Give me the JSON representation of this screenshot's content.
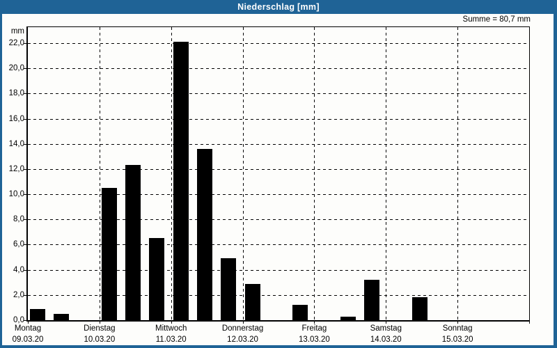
{
  "window": {
    "title": "Niederschlag [mm]",
    "sum_label": "Summe = 80,7 mm"
  },
  "colors": {
    "frame_blue": "#1f6396",
    "title_text": "#ffffff",
    "bar": "#000000",
    "background": "#fdfdfb",
    "grid": "#000000",
    "text": "#000000"
  },
  "chart_data": {
    "type": "bar",
    "title": "Niederschlag [mm]",
    "ylabel": "mm",
    "sum_label": "Summe = 80,7 mm",
    "sum_total_mm": 80.7,
    "unit": "mm",
    "ylim": [
      0,
      23.27
    ],
    "ytick_step": 2,
    "yticks": [
      {
        "value": 0,
        "label": "0,0"
      },
      {
        "value": 2,
        "label": "2,0"
      },
      {
        "value": 4,
        "label": "4,0"
      },
      {
        "value": 6,
        "label": "6,0"
      },
      {
        "value": 8,
        "label": "8,0"
      },
      {
        "value": 10,
        "label": "10,0"
      },
      {
        "value": 12,
        "label": "12,0"
      },
      {
        "value": 14,
        "label": "14,0"
      },
      {
        "value": 16,
        "label": "16,0"
      },
      {
        "value": 18,
        "label": "18,0"
      },
      {
        "value": 20,
        "label": "20,0"
      },
      {
        "value": 22,
        "label": "22,0"
      }
    ],
    "grid": true,
    "legend": "none",
    "bars_per_day": 3,
    "days": [
      {
        "label": "Montag",
        "date": "09.03.20",
        "values": [
          0.9,
          0.5,
          0
        ]
      },
      {
        "label": "Dienstag",
        "date": "10.03.20",
        "values": [
          10.5,
          12.3,
          6.5
        ]
      },
      {
        "label": "Mittwoch",
        "date": "11.03.20",
        "values": [
          22.1,
          13.6,
          4.9
        ]
      },
      {
        "label": "Donnerstag",
        "date": "12.03.20",
        "values": [
          2.9,
          0,
          1.2
        ]
      },
      {
        "label": "Freitag",
        "date": "13.03.20",
        "values": [
          0,
          0.3,
          3.2
        ]
      },
      {
        "label": "Samstag",
        "date": "14.03.20",
        "values": [
          0,
          1.8,
          0
        ]
      },
      {
        "label": "Sonntag",
        "date": "15.03.20",
        "values": [
          0,
          0,
          0
        ]
      }
    ]
  }
}
